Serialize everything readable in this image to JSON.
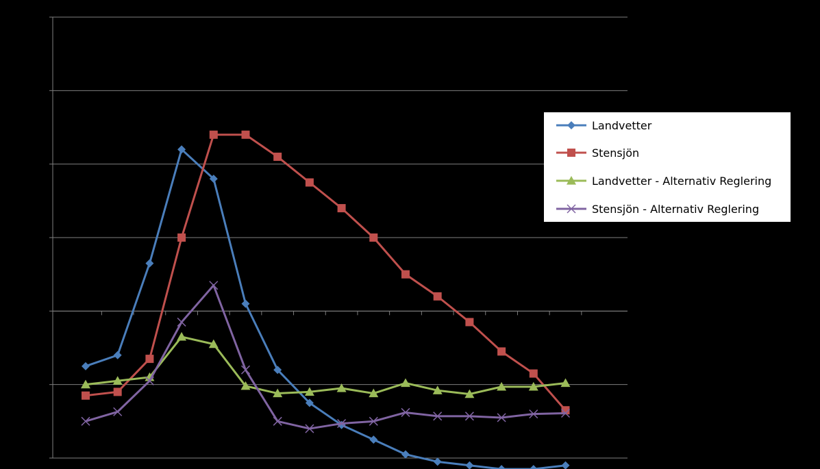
{
  "chart_data": {
    "type": "line",
    "title": "",
    "xlabel": "",
    "ylabel": "",
    "x": [
      1,
      2,
      3,
      4,
      5,
      6,
      7,
      8,
      9,
      10,
      11,
      12,
      13,
      14,
      15,
      16
    ],
    "ylim": [
      -1,
      5
    ],
    "grid": true,
    "legend_position": "right",
    "series": [
      {
        "name": "Landvetter",
        "color": "#4a7ebb",
        "marker": "diamond",
        "values": [
          0.25,
          0.4,
          1.65,
          3.2,
          2.8,
          1.1,
          0.2,
          -0.25,
          -0.55,
          -0.75,
          -0.95,
          -1.05,
          -1.1,
          -1.15,
          -1.15,
          -1.1
        ]
      },
      {
        "name": "Stensjön",
        "color": "#c0504d",
        "marker": "square",
        "values": [
          -0.15,
          -0.1,
          0.35,
          2.0,
          3.4,
          3.4,
          3.1,
          2.75,
          2.4,
          2.0,
          1.5,
          1.2,
          0.85,
          0.45,
          0.15,
          -0.35
        ]
      },
      {
        "name": "Landvetter - Alternativ Reglering",
        "color": "#9bbb59",
        "marker": "triangle",
        "values": [
          0.0,
          0.05,
          0.1,
          0.65,
          0.55,
          -0.02,
          -0.12,
          -0.1,
          -0.05,
          -0.12,
          0.02,
          -0.08,
          -0.13,
          -0.03,
          -0.03,
          0.02
        ]
      },
      {
        "name": "Stensjön - Alternativ Reglering",
        "color": "#8064a2",
        "marker": "x",
        "values": [
          -0.5,
          -0.37,
          0.05,
          0.85,
          1.35,
          0.2,
          -0.5,
          -0.6,
          -0.53,
          -0.5,
          -0.38,
          -0.43,
          -0.43,
          -0.45,
          -0.4,
          -0.39
        ]
      }
    ]
  }
}
